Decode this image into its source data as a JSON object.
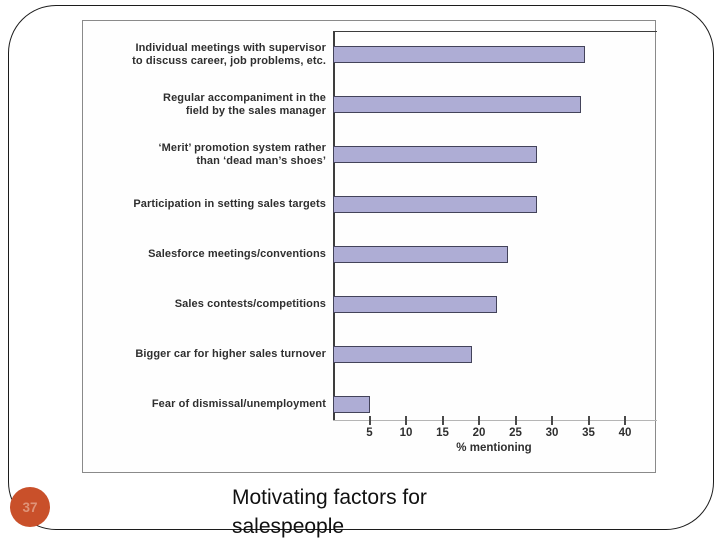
{
  "slide": {
    "page_number": "37",
    "title": "Motivating factors for\nsalespeople",
    "accent_color": "#c9502a"
  },
  "chart_data": {
    "type": "bar",
    "orientation": "horizontal",
    "title": "",
    "xlabel": "% mentioning",
    "ylabel": "",
    "categories": [
      "Individual meetings with supervisor\nto discuss career, job problems, etc.",
      "Regular accompaniment in the\nfield by the sales manager",
      "‘Merit’ promotion system rather\nthan ‘dead man’s shoes’",
      "Participation in setting sales targets",
      "Salesforce meetings/conventions",
      "Sales contests/competitions",
      "Bigger car for higher sales turnover",
      "Fear of dismissal/unemployment"
    ],
    "values": [
      34.5,
      34,
      28,
      28,
      24,
      22.5,
      19,
      5
    ],
    "x_ticks": [
      5,
      10,
      15,
      20,
      25,
      30,
      35,
      40
    ],
    "xlim": [
      0,
      44
    ],
    "grid": false,
    "legend": false,
    "bar_color": "#aeadd5",
    "bar_border_color": "#43435a"
  }
}
